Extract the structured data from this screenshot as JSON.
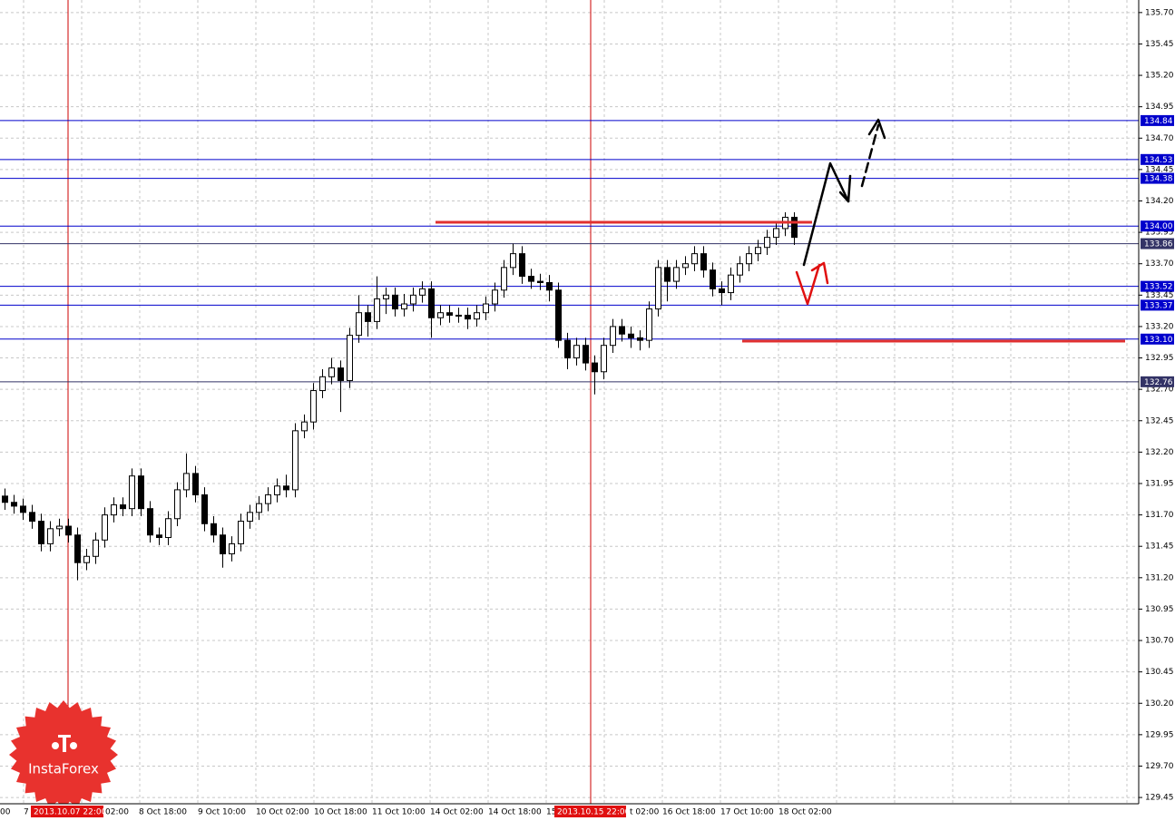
{
  "chart_data": {
    "type": "candlestick",
    "ylim": [
      129.4,
      135.8
    ],
    "yticks": [
      {
        "value": 135.7,
        "label": "135.70"
      },
      135.45,
      {
        "value": 135.2,
        "label": "135.20"
      },
      134.95,
      {
        "value": 134.7,
        "label": "134.70"
      },
      134.45,
      {
        "value": 134.2,
        "label": "134.20"
      },
      133.95,
      {
        "value": 133.7,
        "label": "133.70"
      },
      133.45,
      {
        "value": 133.2,
        "label": "133.20"
      },
      132.95,
      {
        "value": 132.7,
        "label": "132.70"
      },
      132.45,
      {
        "value": 132.2,
        "label": "132.20"
      },
      131.95,
      {
        "value": 131.7,
        "label": "131.70"
      },
      131.45,
      {
        "value": 131.2,
        "label": "131.20"
      },
      130.95,
      {
        "value": 130.7,
        "label": "130.70"
      },
      130.45,
      {
        "value": 130.2,
        "label": "130.20"
      },
      129.95,
      {
        "value": 129.7,
        "label": "129.70"
      },
      129.45
    ],
    "grid": true,
    "xlabels": [
      "00",
      "7",
      "2013.10.07 22:00",
      "02:00",
      "8 Oct 18:00",
      "9 Oct 10:00",
      "10 Oct 02:00",
      "10 Oct 18:00",
      "11 Oct 10:00",
      "14 Oct 02:00",
      "14 Oct 18:00",
      "15",
      "2013.10.15 22:00",
      "t 02:00",
      "16 Oct 18:00",
      "17 Oct 10:00",
      "18 Oct 02:00"
    ],
    "open": [
      131.85,
      131.8,
      131.77,
      131.72,
      131.65,
      131.47,
      131.59,
      131.61,
      131.54,
      131.32,
      131.37,
      131.5,
      131.7,
      131.78,
      131.75,
      132.01,
      131.75,
      131.54,
      131.52,
      131.67,
      131.9,
      132.03,
      131.86,
      131.63,
      131.54,
      131.39,
      131.47,
      131.65,
      131.72,
      131.79,
      131.86,
      131.93,
      131.9,
      132.37,
      132.44,
      132.69,
      132.8,
      132.87,
      132.77,
      133.13,
      133.31,
      133.24,
      133.42,
      133.45,
      133.34,
      133.38,
      133.45,
      133.5,
      133.27,
      133.31,
      133.29,
      133.29,
      133.26,
      133.31,
      133.38,
      133.49,
      133.67,
      133.78,
      133.6,
      133.56,
      133.55,
      133.49,
      133.09,
      132.95,
      133.05,
      132.91,
      132.84,
      133.05,
      133.2,
      133.14,
      133.11,
      133.09,
      133.34,
      133.67,
      133.56,
      133.67,
      133.7,
      133.78,
      133.65,
      133.5,
      133.47,
      133.61,
      133.7,
      133.78,
      133.83,
      133.91,
      133.98,
      134.07
    ],
    "high": [
      131.91,
      131.86,
      131.83,
      131.78,
      131.71,
      131.65,
      131.67,
      131.67,
      131.6,
      131.43,
      131.56,
      131.76,
      131.84,
      131.84,
      132.07,
      132.07,
      131.81,
      131.6,
      131.73,
      131.96,
      132.19,
      132.09,
      131.92,
      131.69,
      131.6,
      131.53,
      131.71,
      131.78,
      131.85,
      131.92,
      131.99,
      132.02,
      132.43,
      132.5,
      132.75,
      132.86,
      132.95,
      132.93,
      133.19,
      133.45,
      133.37,
      133.6,
      133.51,
      133.51,
      133.46,
      133.51,
      133.56,
      133.56,
      133.37,
      133.37,
      133.35,
      133.35,
      133.37,
      133.44,
      133.55,
      133.73,
      133.86,
      133.84,
      133.66,
      133.62,
      133.61,
      133.55,
      133.15,
      133.11,
      133.11,
      132.97,
      133.11,
      133.26,
      133.26,
      133.2,
      133.17,
      133.4,
      133.73,
      133.73,
      133.73,
      133.76,
      133.84,
      133.84,
      133.71,
      133.56,
      133.67,
      133.76,
      133.84,
      133.89,
      133.97,
      134.04,
      134.11,
      134.11
    ],
    "low": [
      131.74,
      131.71,
      131.66,
      131.59,
      131.41,
      131.41,
      131.53,
      131.48,
      131.18,
      131.26,
      131.31,
      131.44,
      131.64,
      131.69,
      131.69,
      131.69,
      131.48,
      131.46,
      131.46,
      131.61,
      131.84,
      131.8,
      131.57,
      131.48,
      131.28,
      131.33,
      131.41,
      131.59,
      131.66,
      131.73,
      131.8,
      131.84,
      131.84,
      132.31,
      132.38,
      132.63,
      132.74,
      132.52,
      132.71,
      133.07,
      133.12,
      133.18,
      133.3,
      133.28,
      133.28,
      133.32,
      133.39,
      133.11,
      133.21,
      133.23,
      133.23,
      133.18,
      133.2,
      133.25,
      133.32,
      133.43,
      133.61,
      133.54,
      133.5,
      133.49,
      133.4,
      133.03,
      132.86,
      132.89,
      132.85,
      132.66,
      132.78,
      132.99,
      133.08,
      133.03,
      133.01,
      133.03,
      133.28,
      133.4,
      133.5,
      133.61,
      133.64,
      133.59,
      133.44,
      133.37,
      133.41,
      133.55,
      133.64,
      133.72,
      133.77,
      133.85,
      133.92,
      133.85
    ],
    "close": [
      131.8,
      131.77,
      131.72,
      131.65,
      131.47,
      131.59,
      131.61,
      131.54,
      131.32,
      131.37,
      131.5,
      131.7,
      131.78,
      131.75,
      132.01,
      131.75,
      131.54,
      131.52,
      131.67,
      131.9,
      132.03,
      131.86,
      131.63,
      131.54,
      131.39,
      131.47,
      131.65,
      131.72,
      131.79,
      131.86,
      131.93,
      131.9,
      132.37,
      132.44,
      132.69,
      132.8,
      132.87,
      132.77,
      133.13,
      133.31,
      133.24,
      133.42,
      133.45,
      133.34,
      133.38,
      133.45,
      133.5,
      133.27,
      133.31,
      133.29,
      133.29,
      133.26,
      133.31,
      133.38,
      133.49,
      133.67,
      133.78,
      133.6,
      133.56,
      133.55,
      133.49,
      133.09,
      132.95,
      133.05,
      132.91,
      132.84,
      133.05,
      133.2,
      133.14,
      133.11,
      133.09,
      133.34,
      133.67,
      133.56,
      133.67,
      133.7,
      133.78,
      133.65,
      133.5,
      133.47,
      133.61,
      133.7,
      133.78,
      133.83,
      133.91,
      133.98,
      134.07,
      133.91
    ],
    "levels": [
      {
        "value": 134.84,
        "color": "#0000cc"
      },
      {
        "value": 134.53,
        "color": "#0000cc"
      },
      {
        "value": 134.38,
        "color": "#0000cc"
      },
      {
        "value": 134,
        "label": "134.00",
        "color": "#0000cc"
      },
      {
        "value": 133.86,
        "color": "#333366"
      },
      {
        "value": 133.52,
        "color": "#0000cc"
      },
      {
        "value": 133.37,
        "color": "#0000cc"
      },
      {
        "value": 133.1,
        "label": "133.10",
        "color": "#0000cc"
      },
      {
        "value": 132.76,
        "color": "#333366"
      }
    ]
  },
  "watermark": "InstaForex"
}
